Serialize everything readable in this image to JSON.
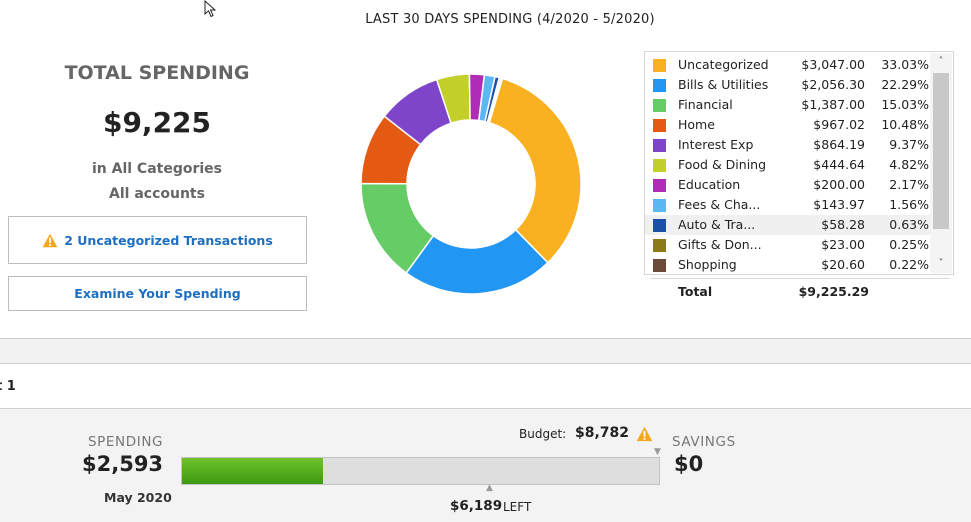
{
  "chart_title": "LAST 30 DAYS SPENDING (4/2020 - 5/2020)",
  "summary": {
    "title": "TOTAL SPENDING",
    "amount": "$9,225",
    "categories_text": "in All Categories",
    "accounts_text": "All accounts",
    "uncategorized_button": "2 Uncategorized Transactions",
    "examine_button": "Examine Your Spending"
  },
  "colors": {
    "link_blue": "#1e6fc0",
    "warning_orange": "#f5a623",
    "progress_green": "#4caf1a"
  },
  "chart_data": {
    "type": "pie",
    "donut": true,
    "title": "LAST 30 DAYS SPENDING (4/2020 - 5/2020)",
    "categories": [
      "Uncategorized",
      "Bills & Utilities",
      "Financial",
      "Home",
      "Interest Exp",
      "Food & Dining",
      "Education",
      "Fees & Cha...",
      "Auto & Tra...",
      "Gifts & Don...",
      "Shopping"
    ],
    "values": [
      3047.0,
      2056.3,
      1387.0,
      967.02,
      864.19,
      444.64,
      200.0,
      143.97,
      58.28,
      23.0,
      20.6
    ],
    "legend_position": "right",
    "total": "$9,225.29"
  },
  "legend": {
    "rows": [
      {
        "name": "Uncategorized",
        "amount": "$3,047.00",
        "pct": "33.03%",
        "color": "#f9b121"
      },
      {
        "name": "Bills & Utilities",
        "amount": "$2,056.30",
        "pct": "22.29%",
        "color": "#2196f3"
      },
      {
        "name": "Financial",
        "amount": "$1,387.00",
        "pct": "15.03%",
        "color": "#66cc66"
      },
      {
        "name": "Home",
        "amount": "$967.02",
        "pct": "10.48%",
        "color": "#e55a12"
      },
      {
        "name": "Interest Exp",
        "amount": "$864.19",
        "pct": "9.37%",
        "color": "#7e44c9"
      },
      {
        "name": "Food & Dining",
        "amount": "$444.64",
        "pct": "4.82%",
        "color": "#c3d02b"
      },
      {
        "name": "Education",
        "amount": "$200.00",
        "pct": "2.17%",
        "color": "#b02bb8"
      },
      {
        "name": "Fees & Cha...",
        "amount": "$143.97",
        "pct": "1.56%",
        "color": "#5cb8f5"
      },
      {
        "name": "Auto & Tra...",
        "amount": "$58.28",
        "pct": "0.63%",
        "color": "#1e4fa6"
      },
      {
        "name": "Gifts & Don...",
        "amount": "$23.00",
        "pct": "0.25%",
        "color": "#8a7a1a"
      },
      {
        "name": "Shopping",
        "amount": "$20.60",
        "pct": "0.22%",
        "color": "#6b4a3a"
      }
    ],
    "total_label": "Total",
    "total_amount": "$9,225.29",
    "highlighted_row": "Auto & Tra..."
  },
  "section_label": "t 1",
  "budget": {
    "spending_label": "SPENDING",
    "spending_amount": "$2,593",
    "period": "May 2020",
    "budget_label": "Budget:",
    "budget_amount": "$8,782",
    "left_amount": "$6,189",
    "left_word": "LEFT",
    "savings_label": "SAVINGS",
    "savings_amount": "$0",
    "progress_fraction": 0.295
  }
}
